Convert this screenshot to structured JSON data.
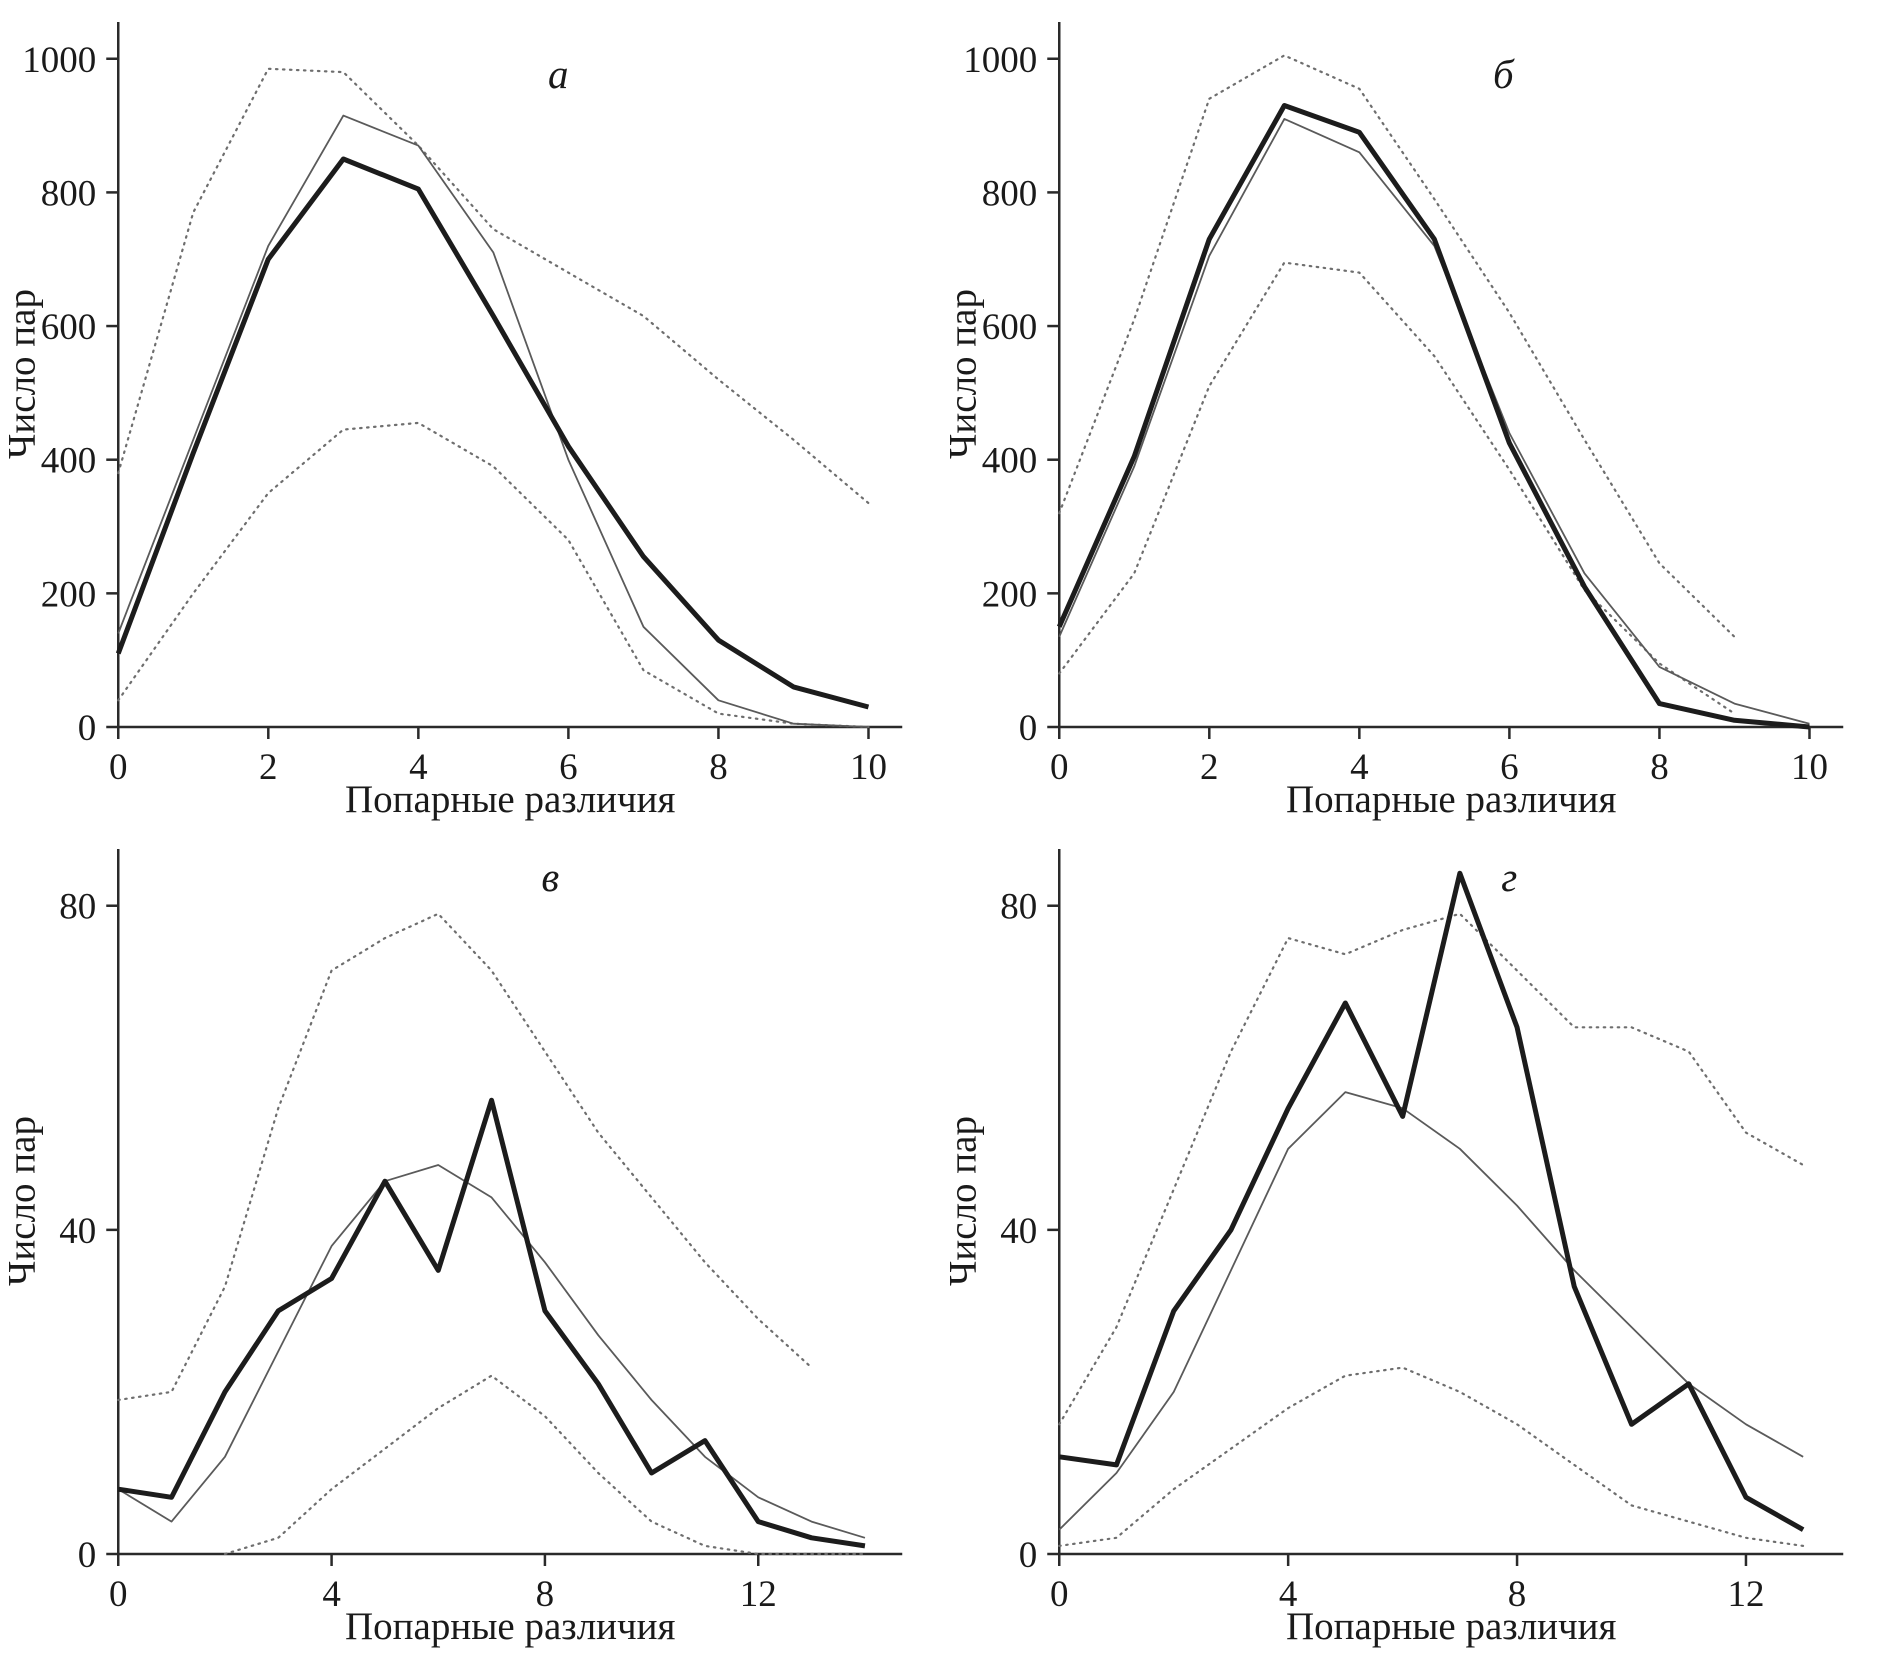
{
  "chart_data": [
    {
      "type": "line",
      "panel_label": "а",
      "xlabel": "Попарные различия",
      "ylabel": "Число пар",
      "xlim": [
        0,
        10.45
      ],
      "ylim": [
        0,
        1055
      ],
      "xticks": [
        0,
        2,
        4,
        6,
        8,
        10
      ],
      "yticks": [
        0,
        200,
        400,
        600,
        800,
        1000
      ],
      "grid": false,
      "legend": "none",
      "series": [
        {
          "name": "dotted-upper",
          "style": "dotted",
          "x": [
            0,
            1,
            2,
            3,
            4,
            5,
            6,
            7,
            8,
            9,
            10
          ],
          "y": [
            380,
            770,
            985,
            980,
            870,
            745,
            680,
            615,
            520,
            430,
            335
          ]
        },
        {
          "name": "dotted-lower",
          "style": "dotted",
          "x": [
            0,
            1,
            2,
            3,
            4,
            5,
            6,
            7,
            8,
            9,
            10
          ],
          "y": [
            40,
            200,
            350,
            445,
            455,
            390,
            280,
            85,
            20,
            5,
            0
          ]
        },
        {
          "name": "thin-line",
          "style": "thin",
          "x": [
            0,
            1,
            2,
            3,
            4,
            5,
            6,
            7,
            8,
            9,
            10
          ],
          "y": [
            140,
            430,
            720,
            915,
            870,
            710,
            400,
            150,
            40,
            5,
            0
          ]
        },
        {
          "name": "bold-line",
          "style": "bold",
          "x": [
            0,
            1,
            2,
            3,
            4,
            5,
            6,
            7,
            8,
            9,
            10
          ],
          "y": [
            110,
            410,
            700,
            850,
            805,
            615,
            420,
            255,
            130,
            60,
            30
          ]
        }
      ]
    },
    {
      "type": "line",
      "panel_label": "б",
      "xlabel": "Попарные различия",
      "ylabel": "Число пар",
      "xlim": [
        0,
        10.45
      ],
      "ylim": [
        0,
        1055
      ],
      "xticks": [
        0,
        2,
        4,
        6,
        8,
        10
      ],
      "yticks": [
        0,
        200,
        400,
        600,
        800,
        1000
      ],
      "grid": false,
      "legend": "none",
      "series": [
        {
          "name": "dotted-upper",
          "style": "dotted",
          "x": [
            0,
            1,
            2,
            3,
            4,
            5,
            6,
            7,
            8,
            9
          ],
          "y": [
            320,
            610,
            940,
            1005,
            955,
            790,
            620,
            430,
            245,
            135
          ]
        },
        {
          "name": "dotted-lower",
          "style": "dotted",
          "x": [
            0,
            1,
            2,
            3,
            4,
            5,
            6,
            7,
            8,
            9
          ],
          "y": [
            80,
            230,
            510,
            695,
            680,
            555,
            385,
            205,
            95,
            20
          ]
        },
        {
          "name": "thin-line",
          "style": "thin",
          "x": [
            0,
            1,
            2,
            3,
            4,
            5,
            6,
            7,
            8,
            9,
            10
          ],
          "y": [
            135,
            390,
            705,
            910,
            860,
            720,
            440,
            230,
            90,
            35,
            5
          ]
        },
        {
          "name": "bold-line",
          "style": "bold",
          "x": [
            0,
            1,
            2,
            3,
            4,
            5,
            6,
            7,
            8,
            9,
            10
          ],
          "y": [
            150,
            405,
            730,
            930,
            890,
            730,
            425,
            210,
            35,
            10,
            0
          ]
        }
      ]
    },
    {
      "type": "line",
      "panel_label": "в",
      "xlabel": "Попарные различия",
      "ylabel": "Число пар",
      "xlim": [
        0,
        14.7
      ],
      "ylim": [
        0,
        87
      ],
      "xticks": [
        0,
        4,
        8,
        12
      ],
      "yticks": [
        0,
        40,
        80
      ],
      "grid": false,
      "legend": "none",
      "series": [
        {
          "name": "dotted-upper",
          "style": "dotted",
          "x": [
            0,
            1,
            2,
            3,
            4,
            5,
            6,
            7,
            8,
            9,
            10,
            11,
            12,
            13
          ],
          "y": [
            19,
            20,
            33,
            55,
            72,
            76,
            79,
            72,
            62,
            52,
            44,
            36,
            29,
            23
          ]
        },
        {
          "name": "dotted-lower",
          "style": "dotted",
          "x": [
            2,
            3,
            4,
            5,
            6,
            7,
            8,
            9,
            10,
            11,
            12,
            13,
            14
          ],
          "y": [
            0,
            2,
            8,
            13,
            18,
            22,
            17,
            10,
            4,
            1,
            0,
            0,
            0
          ]
        },
        {
          "name": "thin-line",
          "style": "thin",
          "x": [
            0,
            1,
            2,
            3,
            4,
            5,
            6,
            7,
            8,
            9,
            10,
            11,
            12,
            13,
            14
          ],
          "y": [
            8,
            4,
            12,
            25,
            38,
            46,
            48,
            44,
            36,
            27,
            19,
            12,
            7,
            4,
            2
          ]
        },
        {
          "name": "bold-line",
          "style": "bold",
          "x": [
            0,
            1,
            2,
            3,
            4,
            5,
            6,
            7,
            8,
            9,
            10,
            11,
            12,
            13,
            14
          ],
          "y": [
            8,
            7,
            20,
            30,
            34,
            46,
            35,
            56,
            30,
            21,
            10,
            14,
            4,
            2,
            1
          ]
        }
      ]
    },
    {
      "type": "line",
      "panel_label": "г",
      "xlabel": "Попарные различия",
      "ylabel": "Число пар",
      "xlim": [
        0,
        13.7
      ],
      "ylim": [
        0,
        87
      ],
      "xticks": [
        0,
        4,
        8,
        12
      ],
      "yticks": [
        0,
        40,
        80
      ],
      "grid": false,
      "legend": "none",
      "series": [
        {
          "name": "dotted-upper",
          "style": "dotted",
          "x": [
            0,
            1,
            2,
            3,
            4,
            5,
            6,
            7,
            8,
            9,
            10,
            11,
            12,
            13
          ],
          "y": [
            16,
            28,
            45,
            62,
            76,
            74,
            77,
            79,
            72,
            65,
            65,
            62,
            52,
            48
          ]
        },
        {
          "name": "dotted-lower",
          "style": "dotted",
          "x": [
            0,
            1,
            2,
            3,
            4,
            5,
            6,
            7,
            8,
            9,
            10,
            11,
            12,
            13
          ],
          "y": [
            1,
            2,
            8,
            13,
            18,
            22,
            23,
            20,
            16,
            11,
            6,
            4,
            2,
            1
          ]
        },
        {
          "name": "thin-line",
          "style": "thin",
          "x": [
            0,
            1,
            2,
            3,
            4,
            5,
            6,
            7,
            8,
            9,
            10,
            11,
            12,
            13
          ],
          "y": [
            3,
            10,
            20,
            35,
            50,
            57,
            55,
            50,
            43,
            35,
            28,
            21,
            16,
            12
          ]
        },
        {
          "name": "bold-line",
          "style": "bold",
          "x": [
            0,
            1,
            2,
            3,
            4,
            5,
            6,
            7,
            8,
            9,
            10,
            11,
            12,
            13
          ],
          "y": [
            12,
            11,
            30,
            40,
            55,
            68,
            54,
            84,
            65,
            33,
            16,
            21,
            7,
            3
          ]
        }
      ]
    }
  ]
}
